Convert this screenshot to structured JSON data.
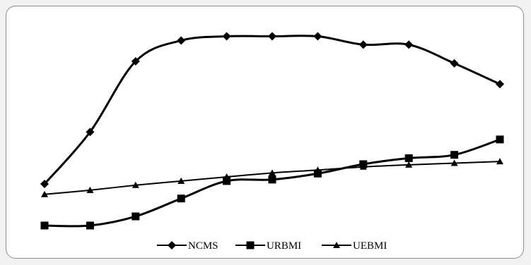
{
  "chart_data": {
    "type": "line",
    "title": "",
    "xlabel": "",
    "ylabel": "",
    "x": [
      1,
      2,
      3,
      4,
      5,
      6,
      7,
      8,
      9,
      10,
      11
    ],
    "ylim": [
      0,
      100
    ],
    "grid": false,
    "legend_position": "bottom-center",
    "series": [
      {
        "name": "NCMS",
        "marker": "diamond",
        "color": "#000000",
        "values": [
          20,
          45,
          79,
          89,
          91,
          91,
          91,
          87,
          87,
          78,
          68
        ]
      },
      {
        "name": "URBMI",
        "marker": "square",
        "color": "#000000",
        "values": [
          0,
          0,
          4.4,
          13,
          21.4,
          22.1,
          25,
          29.5,
          32.4,
          34,
          41.4
        ]
      },
      {
        "name": "UEBMI",
        "marker": "triangle",
        "color": "#000000",
        "values": [
          15,
          17,
          19.4,
          21.4,
          23.4,
          25.3,
          26.7,
          28.2,
          29.2,
          30,
          30.8
        ]
      }
    ]
  }
}
